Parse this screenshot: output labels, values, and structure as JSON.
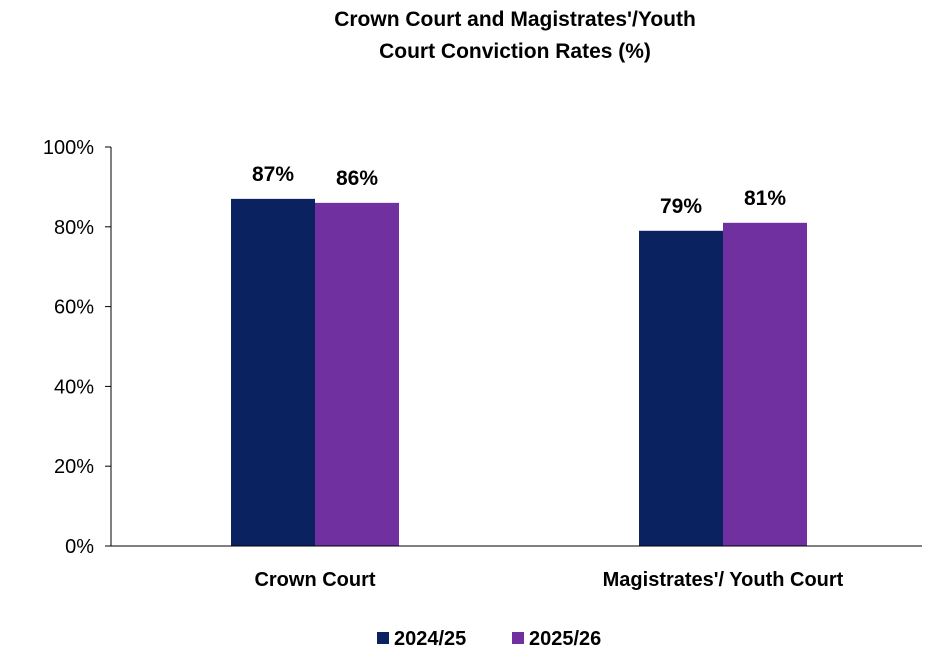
{
  "chart_data": {
    "type": "bar",
    "title": "Crown Court and Magistrates'/Youth Court Conviction Rates (%)",
    "title_lines": [
      "Crown Court and Magistrates'/Youth",
      "Court Conviction Rates (%)"
    ],
    "categories": [
      "Crown Court",
      "Magistrates'/ Youth Court"
    ],
    "series": [
      {
        "name": "2024/25",
        "values": [
          87,
          79
        ],
        "labels": [
          "87%",
          "79%"
        ],
        "color": "#0a2260"
      },
      {
        "name": "2025/26",
        "values": [
          86,
          81
        ],
        "labels": [
          "86%",
          "81%"
        ],
        "color": "#7030a0"
      }
    ],
    "ylim": [
      0,
      100
    ],
    "yticks": [
      0,
      20,
      40,
      60,
      80,
      100
    ],
    "ytick_labels": [
      "0%",
      "20%",
      "40%",
      "60%",
      "80%",
      "100%"
    ],
    "xlabel": "",
    "ylabel": "",
    "grid": false,
    "legend_position": "bottom-center"
  }
}
